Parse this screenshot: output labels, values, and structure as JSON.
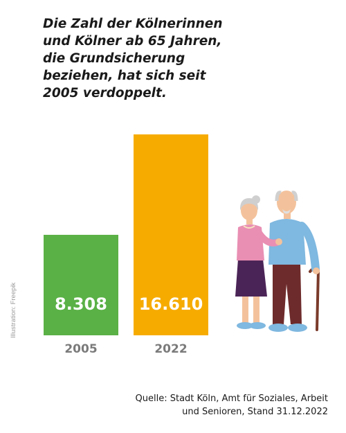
{
  "headline": "Die Zahl der Kölnerinnen\nund Kölner ab 65 Jahren,\ndie Grundsicherung\nbeziehen, hat sich seit\n2005 verdoppelt.",
  "credit": "Illustration: Freepik",
  "source": {
    "line1": "Quelle: Stadt Köln, Amt für Soziales, Arbeit",
    "line2": "und Senioren, Stand 31.12.2022"
  },
  "chart_data": {
    "type": "bar",
    "categories": [
      "2005",
      "2022"
    ],
    "values": [
      8308,
      16610
    ],
    "value_labels": [
      "8.308",
      "16.610"
    ],
    "colors": [
      "#5ab146",
      "#f6ab00"
    ],
    "title": "",
    "xlabel": "",
    "ylabel": "",
    "ylim": [
      0,
      16610
    ],
    "grid": false,
    "legend": "none"
  },
  "illustration": {
    "name": "elderly-couple-illustration",
    "colors": {
      "woman_top": "#e98fb3",
      "woman_skirt": "#4b2457",
      "man_shirt": "#7fb8e0",
      "man_trousers": "#6e2b2b",
      "cane": "#7a3a2a",
      "skin": "#f3c29c",
      "hair": "#cfcfcf",
      "shoes": "#7fb8e0"
    }
  }
}
